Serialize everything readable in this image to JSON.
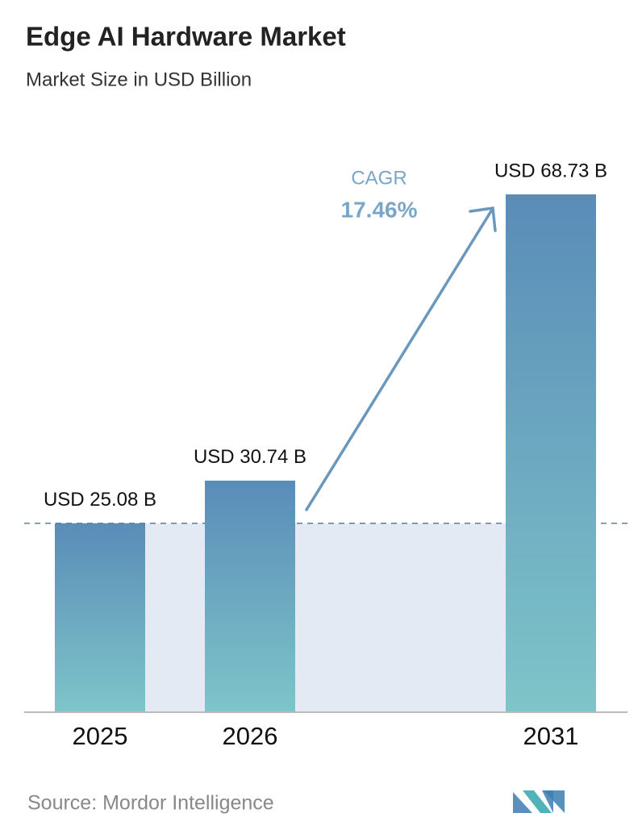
{
  "chart_data": {
    "type": "bar",
    "title": "Edge AI Hardware Market",
    "subtitle": "Market Size in USD Billion",
    "categories": [
      "2025",
      "2026",
      "2031"
    ],
    "values": [
      25.08,
      30.74,
      68.73
    ],
    "value_labels": [
      "USD 25.08 B",
      "USD 30.74 B",
      "USD 68.73 B"
    ],
    "color": [
      "#5a8cb8",
      "#7ec5c9"
    ],
    "annotation": {
      "label": "CAGR",
      "text": "17.46%"
    },
    "source": "Source: Mordor Intelligence"
  }
}
